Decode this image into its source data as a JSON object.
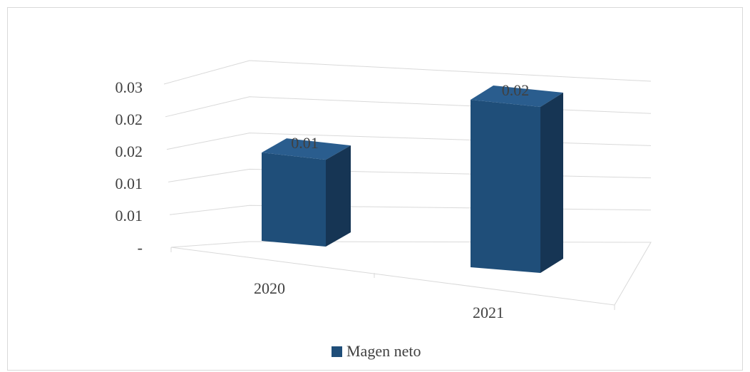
{
  "chart_data": {
    "type": "bar",
    "title": "",
    "categories": [
      "2020",
      "2021"
    ],
    "series": [
      {
        "name": "Magen neto",
        "values": [
          0.014,
          0.024
        ],
        "data_labels": [
          "0.01",
          "0.02"
        ]
      }
    ],
    "y_tick_labels": [
      "-",
      "0.01",
      "0.01",
      "0.02",
      "0.02",
      "0.03"
    ],
    "ylim": [
      0,
      0.03
    ],
    "grid": true,
    "legend_position": "bottom",
    "colors": {
      "front": "#1f4e79",
      "side": "#163554",
      "top": "#2a5d8e",
      "gridline": "#d9d9d9",
      "text": "#404040"
    },
    "style": "3d-column"
  }
}
